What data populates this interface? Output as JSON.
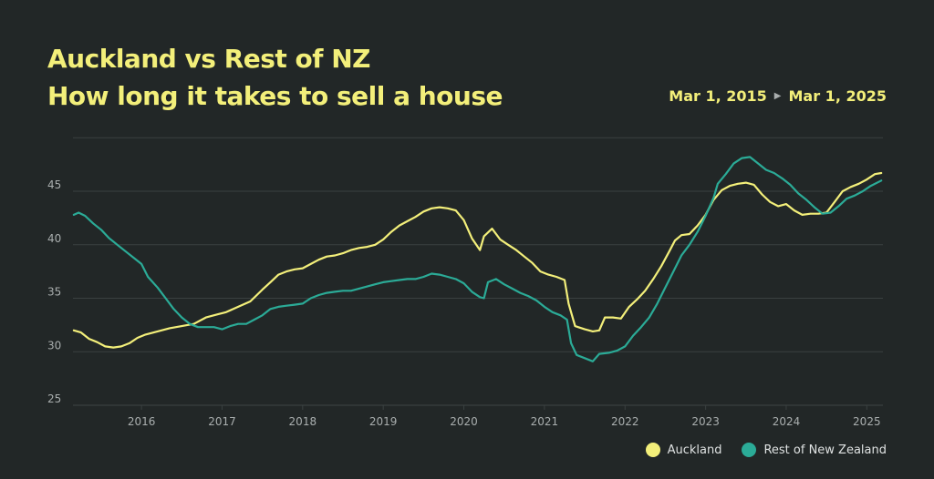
{
  "title": {
    "line1": "Auckland vs Rest of NZ",
    "line2": "How long it takes to sell a house"
  },
  "date_range": {
    "start": "Mar 1, 2015",
    "end": "Mar 1, 2025",
    "arrow_icon": "play-arrow-icon"
  },
  "colors": {
    "auckland": "#f3ef7a",
    "rest": "#2bab97",
    "grid": "#3a4040",
    "title": "#f3ef7a"
  },
  "chart_data": {
    "type": "line",
    "title": "Auckland vs Rest of NZ / How long it takes to sell a house",
    "xlabel": "",
    "ylabel": "",
    "xlim": [
      2015.15,
      2025.2
    ],
    "ylim": [
      25,
      50
    ],
    "grid": true,
    "legend_position": "bottom-right",
    "x_ticks": [
      "2016",
      "2017",
      "2018",
      "2019",
      "2020",
      "2021",
      "2022",
      "2023",
      "2024",
      "2025"
    ],
    "y_ticks": [
      "25",
      "30",
      "35",
      "40",
      "45"
    ],
    "series": [
      {
        "name": "Auckland",
        "color": "#f3ef7a",
        "points": [
          [
            2015.16,
            32.0
          ],
          [
            2015.25,
            31.8
          ],
          [
            2015.35,
            31.2
          ],
          [
            2015.45,
            30.9
          ],
          [
            2015.55,
            30.5
          ],
          [
            2015.65,
            30.4
          ],
          [
            2015.75,
            30.5
          ],
          [
            2015.85,
            30.8
          ],
          [
            2015.95,
            31.3
          ],
          [
            2016.05,
            31.6
          ],
          [
            2016.2,
            31.9
          ],
          [
            2016.35,
            32.2
          ],
          [
            2016.5,
            32.4
          ],
          [
            2016.65,
            32.6
          ],
          [
            2016.8,
            33.2
          ],
          [
            2016.95,
            33.5
          ],
          [
            2017.05,
            33.7
          ],
          [
            2017.2,
            34.2
          ],
          [
            2017.35,
            34.7
          ],
          [
            2017.5,
            35.8
          ],
          [
            2017.6,
            36.5
          ],
          [
            2017.7,
            37.2
          ],
          [
            2017.8,
            37.5
          ],
          [
            2017.9,
            37.7
          ],
          [
            2018.0,
            37.8
          ],
          [
            2018.1,
            38.2
          ],
          [
            2018.2,
            38.6
          ],
          [
            2018.3,
            38.9
          ],
          [
            2018.4,
            39.0
          ],
          [
            2018.5,
            39.2
          ],
          [
            2018.6,
            39.5
          ],
          [
            2018.7,
            39.7
          ],
          [
            2018.8,
            39.8
          ],
          [
            2018.9,
            40.0
          ],
          [
            2019.0,
            40.5
          ],
          [
            2019.1,
            41.2
          ],
          [
            2019.2,
            41.8
          ],
          [
            2019.3,
            42.2
          ],
          [
            2019.4,
            42.6
          ],
          [
            2019.5,
            43.1
          ],
          [
            2019.6,
            43.4
          ],
          [
            2019.7,
            43.5
          ],
          [
            2019.8,
            43.4
          ],
          [
            2019.9,
            43.2
          ],
          [
            2020.0,
            42.3
          ],
          [
            2020.1,
            40.6
          ],
          [
            2020.2,
            39.5
          ],
          [
            2020.25,
            40.8
          ],
          [
            2020.35,
            41.5
          ],
          [
            2020.45,
            40.5
          ],
          [
            2020.55,
            40.0
          ],
          [
            2020.65,
            39.5
          ],
          [
            2020.75,
            38.9
          ],
          [
            2020.85,
            38.3
          ],
          [
            2020.95,
            37.5
          ],
          [
            2021.05,
            37.2
          ],
          [
            2021.15,
            37.0
          ],
          [
            2021.25,
            36.7
          ],
          [
            2021.3,
            34.5
          ],
          [
            2021.38,
            32.4
          ],
          [
            2021.5,
            32.1
          ],
          [
            2021.6,
            31.9
          ],
          [
            2021.68,
            32.0
          ],
          [
            2021.75,
            33.2
          ],
          [
            2021.85,
            33.2
          ],
          [
            2021.95,
            33.1
          ],
          [
            2022.05,
            34.2
          ],
          [
            2022.15,
            34.9
          ],
          [
            2022.25,
            35.7
          ],
          [
            2022.35,
            36.8
          ],
          [
            2022.45,
            38.0
          ],
          [
            2022.55,
            39.4
          ],
          [
            2022.62,
            40.4
          ],
          [
            2022.7,
            40.9
          ],
          [
            2022.8,
            41.0
          ],
          [
            2022.9,
            41.8
          ],
          [
            2023.0,
            42.8
          ],
          [
            2023.1,
            44.2
          ],
          [
            2023.2,
            45.1
          ],
          [
            2023.3,
            45.5
          ],
          [
            2023.4,
            45.7
          ],
          [
            2023.5,
            45.8
          ],
          [
            2023.6,
            45.6
          ],
          [
            2023.7,
            44.7
          ],
          [
            2023.8,
            44.0
          ],
          [
            2023.9,
            43.6
          ],
          [
            2024.0,
            43.8
          ],
          [
            2024.1,
            43.2
          ],
          [
            2024.2,
            42.8
          ],
          [
            2024.3,
            42.9
          ],
          [
            2024.4,
            42.9
          ],
          [
            2024.5,
            43.0
          ],
          [
            2024.6,
            44.0
          ],
          [
            2024.7,
            45.0
          ],
          [
            2024.8,
            45.4
          ],
          [
            2024.9,
            45.7
          ],
          [
            2025.0,
            46.1
          ],
          [
            2025.1,
            46.6
          ],
          [
            2025.18,
            46.7
          ]
        ]
      },
      {
        "name": "Rest of New Zealand",
        "color": "#2bab97",
        "points": [
          [
            2015.16,
            42.8
          ],
          [
            2015.22,
            43.0
          ],
          [
            2015.3,
            42.7
          ],
          [
            2015.4,
            42.0
          ],
          [
            2015.5,
            41.4
          ],
          [
            2015.6,
            40.6
          ],
          [
            2015.7,
            40.0
          ],
          [
            2015.8,
            39.4
          ],
          [
            2015.9,
            38.8
          ],
          [
            2016.0,
            38.2
          ],
          [
            2016.08,
            37.0
          ],
          [
            2016.2,
            36.0
          ],
          [
            2016.3,
            35.0
          ],
          [
            2016.4,
            34.0
          ],
          [
            2016.5,
            33.2
          ],
          [
            2016.6,
            32.6
          ],
          [
            2016.7,
            32.3
          ],
          [
            2016.8,
            32.3
          ],
          [
            2016.9,
            32.3
          ],
          [
            2017.0,
            32.1
          ],
          [
            2017.1,
            32.4
          ],
          [
            2017.2,
            32.6
          ],
          [
            2017.3,
            32.6
          ],
          [
            2017.4,
            33.0
          ],
          [
            2017.5,
            33.4
          ],
          [
            2017.6,
            34.0
          ],
          [
            2017.7,
            34.2
          ],
          [
            2017.8,
            34.3
          ],
          [
            2017.9,
            34.4
          ],
          [
            2018.0,
            34.5
          ],
          [
            2018.1,
            35.0
          ],
          [
            2018.2,
            35.3
          ],
          [
            2018.3,
            35.5
          ],
          [
            2018.4,
            35.6
          ],
          [
            2018.5,
            35.7
          ],
          [
            2018.6,
            35.7
          ],
          [
            2018.7,
            35.9
          ],
          [
            2018.8,
            36.1
          ],
          [
            2018.9,
            36.3
          ],
          [
            2019.0,
            36.5
          ],
          [
            2019.1,
            36.6
          ],
          [
            2019.2,
            36.7
          ],
          [
            2019.3,
            36.8
          ],
          [
            2019.4,
            36.8
          ],
          [
            2019.5,
            37.0
          ],
          [
            2019.6,
            37.3
          ],
          [
            2019.7,
            37.2
          ],
          [
            2019.8,
            37.0
          ],
          [
            2019.9,
            36.8
          ],
          [
            2020.0,
            36.4
          ],
          [
            2020.1,
            35.6
          ],
          [
            2020.2,
            35.1
          ],
          [
            2020.25,
            35.0
          ],
          [
            2020.3,
            36.5
          ],
          [
            2020.4,
            36.8
          ],
          [
            2020.5,
            36.3
          ],
          [
            2020.6,
            35.9
          ],
          [
            2020.7,
            35.5
          ],
          [
            2020.8,
            35.2
          ],
          [
            2020.9,
            34.8
          ],
          [
            2021.0,
            34.2
          ],
          [
            2021.1,
            33.7
          ],
          [
            2021.2,
            33.4
          ],
          [
            2021.28,
            33.0
          ],
          [
            2021.33,
            30.8
          ],
          [
            2021.4,
            29.7
          ],
          [
            2021.5,
            29.4
          ],
          [
            2021.6,
            29.1
          ],
          [
            2021.68,
            29.8
          ],
          [
            2021.8,
            29.9
          ],
          [
            2021.9,
            30.1
          ],
          [
            2022.0,
            30.5
          ],
          [
            2022.1,
            31.5
          ],
          [
            2022.2,
            32.3
          ],
          [
            2022.3,
            33.2
          ],
          [
            2022.4,
            34.5
          ],
          [
            2022.5,
            36.0
          ],
          [
            2022.6,
            37.5
          ],
          [
            2022.7,
            39.0
          ],
          [
            2022.8,
            40.0
          ],
          [
            2022.9,
            41.2
          ],
          [
            2023.0,
            42.7
          ],
          [
            2023.1,
            44.4
          ],
          [
            2023.15,
            45.7
          ],
          [
            2023.25,
            46.6
          ],
          [
            2023.35,
            47.6
          ],
          [
            2023.45,
            48.1
          ],
          [
            2023.55,
            48.2
          ],
          [
            2023.65,
            47.6
          ],
          [
            2023.75,
            47.0
          ],
          [
            2023.85,
            46.7
          ],
          [
            2023.95,
            46.2
          ],
          [
            2024.05,
            45.6
          ],
          [
            2024.15,
            44.8
          ],
          [
            2024.25,
            44.2
          ],
          [
            2024.35,
            43.5
          ],
          [
            2024.45,
            42.9
          ],
          [
            2024.55,
            43.0
          ],
          [
            2024.65,
            43.6
          ],
          [
            2024.75,
            44.3
          ],
          [
            2024.85,
            44.6
          ],
          [
            2024.95,
            45.0
          ],
          [
            2025.05,
            45.5
          ],
          [
            2025.18,
            46.0
          ]
        ]
      }
    ]
  },
  "legend": {
    "items": [
      {
        "label": "Auckland",
        "color": "#f3ef7a"
      },
      {
        "label": "Rest of New Zealand",
        "color": "#2bab97"
      }
    ]
  }
}
